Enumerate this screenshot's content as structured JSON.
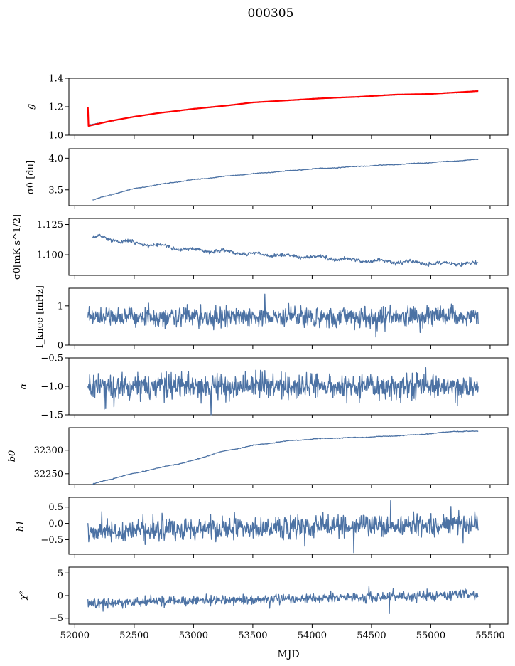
{
  "chart_data": {
    "type": "line",
    "title": "000305",
    "xlabel": "MJD",
    "x_range": [
      51950,
      55650
    ],
    "x_ticks": [
      52000,
      52500,
      53000,
      53500,
      54000,
      54500,
      55000,
      55500
    ],
    "x_tick_labels": [
      "52000",
      "52500",
      "53000",
      "53500",
      "54000",
      "54500",
      "55000",
      "55500"
    ],
    "data_x_span": [
      52110,
      55400
    ],
    "panels": [
      {
        "id": "g",
        "ylabel": "g",
        "ylim": [
          1.0,
          1.4
        ],
        "y_ticks": [
          1.0,
          1.2,
          1.4
        ],
        "y_tick_labels": [
          "1.0",
          "1.2",
          "1.4"
        ],
        "series": [
          {
            "name": "g",
            "color": "#4c72a4",
            "x": [
              52110,
              52300,
              52500,
              52700,
              53000,
              53300,
              53500,
              53800,
              54100,
              54400,
              54700,
              55000,
              55200,
              55400
            ],
            "y": [
              1.07,
              1.1,
              1.13,
              1.155,
              1.185,
              1.21,
              1.23,
              1.245,
              1.26,
              1.27,
              1.285,
              1.29,
              1.3,
              1.31
            ]
          },
          {
            "name": "g-fit",
            "color": "#ff0000",
            "x": [
              52110,
              52115,
              52300,
              52500,
              52700,
              53000,
              53300,
              53500,
              53800,
              54100,
              54400,
              54700,
              55000,
              55200,
              55400
            ],
            "y": [
              1.2,
              1.065,
              1.1,
              1.13,
              1.155,
              1.185,
              1.21,
              1.23,
              1.245,
              1.26,
              1.27,
              1.285,
              1.29,
              1.3,
              1.31
            ]
          }
        ]
      },
      {
        "id": "sigma0-du",
        "ylabel": "σ0 [du]",
        "ylim": [
          3.25,
          4.15
        ],
        "y_ticks": [
          3.5,
          4.0
        ],
        "y_tick_labels": [
          "3.5",
          "4.0"
        ],
        "series": [
          {
            "name": "sigma0",
            "color": "#4c72a4",
            "x": [
              52150,
              52300,
              52500,
              52800,
              53000,
              53300,
              53600,
              54000,
              54300,
              54600,
              55000,
              55400
            ],
            "y": [
              3.34,
              3.42,
              3.52,
              3.61,
              3.66,
              3.72,
              3.77,
              3.83,
              3.86,
              3.89,
              3.93,
              3.98
            ]
          }
        ]
      },
      {
        "id": "sigma0-mKs",
        "ylabel": "σ0[mK s^1/2]",
        "ylim": [
          1.083,
          1.13
        ],
        "y_ticks": [
          1.1,
          1.125
        ],
        "y_tick_labels": [
          "1.100",
          "1.125"
        ],
        "series": [
          {
            "name": "sigma0_mKs",
            "color": "#4c72a4",
            "x": [
              52150,
              52500,
              53000,
              53500,
              54000,
              54500,
              55000,
              55400
            ],
            "y": [
              1.115,
              1.11,
              1.104,
              1.101,
              1.098,
              1.095,
              1.093,
              1.093
            ]
          }
        ]
      },
      {
        "id": "fknee",
        "ylabel": "f_knee [mHz]",
        "ylim": [
          0,
          1.45
        ],
        "y_ticks": [
          0,
          1
        ],
        "y_tick_labels": [
          "0",
          "1"
        ],
        "series": [
          {
            "name": "fknee",
            "color": "#4c72a4",
            "mean": 0.72,
            "noise_sd": 0.13,
            "spikes": [
              [
                53600,
                1.3
              ]
            ]
          }
        ]
      },
      {
        "id": "alpha",
        "ylabel": "α",
        "ylim": [
          -1.5,
          -0.5
        ],
        "y_ticks": [
          -1.5,
          -1.0,
          -0.5
        ],
        "y_tick_labels": [
          "−1.5",
          "−1.0",
          "−0.5"
        ],
        "series": [
          {
            "name": "alpha",
            "color": "#4c72a4",
            "mean": -1.0,
            "noise_sd": 0.11,
            "spikes": [
              [
                53150,
                -1.5
              ],
              [
                53600,
                -0.72
              ],
              [
                52250,
                -1.4
              ]
            ]
          }
        ]
      },
      {
        "id": "b0",
        "ylabel": "b0",
        "ylim": [
          32227,
          32348
        ],
        "y_ticks": [
          32250,
          32300
        ],
        "y_tick_labels": [
          "32250",
          "32300"
        ],
        "series": [
          {
            "name": "b0",
            "color": "#4c72a4",
            "x": [
              52150,
              52400,
              52700,
              53000,
              53200,
              53500,
              53800,
              54100,
              54500,
              54900,
              55200,
              55400
            ],
            "y": [
              32228,
              32245,
              32262,
              32278,
              32295,
              32310,
              32320,
              32325,
              32328,
              32333,
              32340,
              32340
            ]
          }
        ]
      },
      {
        "id": "b1",
        "ylabel": "b1",
        "ylim": [
          -0.95,
          0.8
        ],
        "y_ticks": [
          -0.5,
          0.0,
          0.5
        ],
        "y_tick_labels": [
          "−0.5",
          "0.0",
          "0.5"
        ],
        "series": [
          {
            "name": "b1",
            "color": "#4c72a4",
            "mean_start": -0.25,
            "mean_end": 0.0,
            "noise_sd": 0.17,
            "spikes": [
              [
                54350,
                -0.9
              ],
              [
                54660,
                0.7
              ]
            ]
          }
        ]
      },
      {
        "id": "chi2",
        "ylabel": "χ²",
        "ylim": [
          -6.3,
          6.3
        ],
        "y_ticks": [
          -5,
          0,
          5
        ],
        "y_tick_labels": [
          "−5",
          "0",
          "5"
        ],
        "series": [
          {
            "name": "chi2",
            "color": "#4c72a4",
            "mean_start": -1.7,
            "mean_end": 0.2,
            "noise_sd": 0.55,
            "spikes": [
              [
                54650,
                -4
              ],
              [
                54480,
                2
              ]
            ]
          }
        ]
      }
    ]
  }
}
